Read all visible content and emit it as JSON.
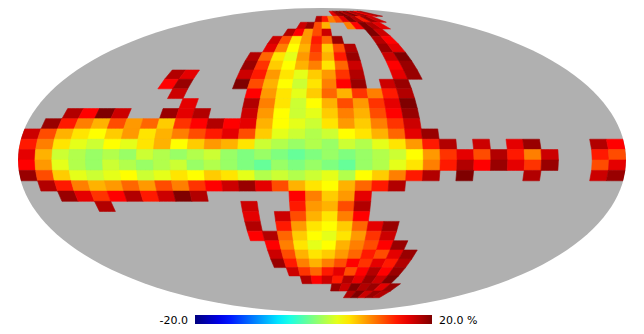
{
  "chart_data": {
    "type": "heatmap",
    "lon": [
      175,
      165,
      155,
      145,
      135,
      125,
      115,
      105,
      95,
      85,
      75,
      65,
      55,
      45,
      35,
      25,
      15,
      5,
      -5,
      -15,
      -25,
      -35,
      -45,
      -55,
      -65,
      -75,
      -85,
      -95,
      -105,
      -115,
      -125,
      -135,
      -145,
      -155,
      -165,
      -175
    ],
    "lat": [
      82.5,
      77.5,
      72.5,
      67.5,
      62.5,
      57.5,
      52.5,
      47.5,
      42.5,
      37.5,
      32.5,
      27.5,
      22.5,
      17.5,
      12.5,
      7.5,
      2.5,
      -2.5,
      -7.5,
      -12.5,
      -17.5,
      -22.5,
      -27.5,
      -32.5,
      -37.5,
      -42.5,
      -47.5,
      -52.5,
      -57.5,
      -62.5,
      -67.5,
      -72.5,
      -77.5,
      -82.5
    ],
    "values": [
      [
        null,
        null,
        null,
        null,
        null,
        null,
        null,
        null,
        null,
        null,
        null,
        null,
        null,
        null,
        null,
        null,
        null,
        null,
        null,
        null,
        16,
        19,
        20,
        18,
        20,
        17,
        19,
        15,
        18,
        null,
        null,
        null,
        null,
        null,
        null,
        null
      ],
      [
        null,
        null,
        null,
        null,
        null,
        null,
        null,
        null,
        null,
        null,
        null,
        null,
        null,
        null,
        null,
        null,
        null,
        18,
        14,
        10,
        12,
        16,
        20,
        18,
        14,
        19,
        17,
        null,
        null,
        null,
        null,
        null,
        null,
        null,
        null,
        null
      ],
      [
        null,
        null,
        null,
        null,
        null,
        null,
        null,
        null,
        null,
        null,
        null,
        null,
        null,
        null,
        null,
        17,
        19,
        12,
        8,
        null,
        null,
        10,
        15,
        20,
        18,
        16,
        null,
        null,
        null,
        null,
        null,
        null,
        null,
        null,
        null,
        null
      ],
      [
        null,
        null,
        null,
        null,
        null,
        null,
        null,
        null,
        null,
        null,
        null,
        null,
        null,
        null,
        18,
        15,
        9,
        12,
        17,
        null,
        null,
        null,
        null,
        20,
        17,
        null,
        null,
        null,
        null,
        null,
        null,
        null,
        null,
        null,
        null,
        null
      ],
      [
        null,
        null,
        null,
        null,
        null,
        null,
        null,
        null,
        null,
        null,
        null,
        null,
        null,
        17,
        12,
        6,
        9,
        14,
        11,
        19,
        null,
        null,
        null,
        18,
        15,
        null,
        null,
        null,
        null,
        null,
        null,
        null,
        null,
        null,
        null,
        null
      ],
      [
        null,
        null,
        null,
        null,
        null,
        null,
        null,
        null,
        null,
        null,
        null,
        null,
        null,
        16,
        10,
        5,
        8,
        13,
        7,
        12,
        18,
        null,
        null,
        19,
        16,
        null,
        null,
        null,
        null,
        null,
        null,
        null,
        null,
        null,
        null,
        null
      ],
      [
        null,
        null,
        null,
        null,
        null,
        null,
        null,
        null,
        null,
        null,
        null,
        null,
        18,
        11,
        6,
        4,
        9,
        12,
        8,
        14,
        19,
        null,
        null,
        17,
        20,
        null,
        null,
        null,
        null,
        null,
        null,
        null,
        null,
        null,
        null,
        null
      ],
      [
        null,
        null,
        null,
        null,
        null,
        null,
        null,
        null,
        null,
        null,
        null,
        null,
        19,
        13,
        7,
        5,
        8,
        10,
        6,
        11,
        17,
        null,
        null,
        15,
        19,
        null,
        null,
        null,
        null,
        null,
        null,
        null,
        null,
        null,
        null,
        null
      ],
      [
        null,
        null,
        null,
        null,
        null,
        null,
        null,
        18,
        16,
        null,
        null,
        null,
        17,
        14,
        9,
        6,
        4,
        7,
        9,
        13,
        18,
        null,
        null,
        16,
        19,
        null,
        null,
        null,
        null,
        null,
        null,
        null,
        null,
        null,
        null,
        null
      ],
      [
        null,
        null,
        null,
        null,
        null,
        null,
        null,
        15,
        19,
        null,
        null,
        null,
        20,
        12,
        8,
        5,
        3,
        6,
        10,
        15,
        19,
        null,
        17,
        19,
        null,
        null,
        null,
        null,
        null,
        null,
        null,
        null,
        null,
        null,
        null,
        null
      ],
      [
        null,
        null,
        null,
        null,
        null,
        null,
        null,
        null,
        17,
        null,
        null,
        null,
        null,
        15,
        9,
        6,
        4,
        7,
        11,
        8,
        13,
        10,
        14,
        18,
        null,
        null,
        null,
        null,
        null,
        null,
        null,
        null,
        null,
        null,
        null,
        null
      ],
      [
        null,
        null,
        null,
        null,
        null,
        null,
        null,
        null,
        null,
        16,
        null,
        null,
        null,
        18,
        10,
        6,
        3,
        5,
        8,
        12,
        9,
        13,
        16,
        20,
        null,
        null,
        null,
        null,
        null,
        null,
        null,
        null,
        null,
        null,
        null,
        null
      ],
      [
        null,
        null,
        18,
        15,
        20,
        17,
        null,
        null,
        19,
        16,
        18,
        null,
        null,
        17,
        9,
        5,
        3,
        4,
        7,
        10,
        8,
        12,
        15,
        19,
        null,
        null,
        null,
        null,
        null,
        null,
        null,
        null,
        null,
        null,
        null,
        null
      ],
      [
        null,
        19,
        14,
        10,
        8,
        12,
        9,
        11,
        7,
        13,
        15,
        18,
        15,
        16,
        8,
        5,
        4,
        3,
        6,
        9,
        7,
        10,
        13,
        17,
        null,
        null,
        null,
        null,
        null,
        null,
        null,
        null,
        null,
        null,
        null,
        null
      ],
      [
        17,
        12,
        8,
        6,
        5,
        7,
        9,
        6,
        8,
        10,
        12,
        14,
        16,
        12,
        7,
        4,
        3,
        2,
        3,
        5,
        6,
        8,
        11,
        16,
        19,
        null,
        null,
        null,
        null,
        null,
        null,
        null,
        null,
        null,
        null,
        null
      ],
      [
        14,
        10,
        6,
        4,
        3,
        5,
        4,
        6,
        8,
        5,
        7,
        9,
        8,
        6,
        3,
        2,
        1,
        2,
        1,
        3,
        2,
        4,
        6,
        9,
        14,
        18,
        null,
        17,
        null,
        16,
        19,
        null,
        null,
        null,
        18,
        15
      ],
      [
        16,
        8,
        3,
        2,
        1,
        2,
        1,
        3,
        2,
        1,
        2,
        3,
        1,
        0,
        1,
        0,
        -1,
        0,
        1,
        0,
        1,
        2,
        3,
        5,
        9,
        13,
        16,
        12,
        18,
        14,
        10,
        17,
        null,
        null,
        14,
        12
      ],
      [
        15,
        9,
        4,
        2,
        1,
        3,
        2,
        1,
        2,
        3,
        1,
        2,
        1,
        0,
        -1,
        1,
        0,
        1,
        0,
        -1,
        1,
        2,
        4,
        6,
        10,
        14,
        18,
        15,
        19,
        16,
        13,
        19,
        null,
        null,
        12,
        16
      ],
      [
        19,
        12,
        7,
        4,
        3,
        4,
        5,
        3,
        4,
        6,
        5,
        7,
        6,
        4,
        2,
        3,
        2,
        3,
        4,
        2,
        5,
        7,
        10,
        14,
        18,
        null,
        20,
        null,
        null,
        null,
        18,
        null,
        null,
        null,
        17,
        19
      ],
      [
        null,
        18,
        14,
        10,
        8,
        9,
        11,
        9,
        12,
        10,
        13,
        15,
        17,
        19,
        16,
        12,
        8,
        6,
        5,
        8,
        11,
        14,
        18,
        null,
        null,
        null,
        null,
        null,
        null,
        null,
        null,
        null,
        null,
        null,
        null,
        null
      ],
      [
        null,
        null,
        19,
        16,
        13,
        15,
        18,
        14,
        17,
        20,
        18,
        null,
        null,
        null,
        null,
        null,
        15,
        10,
        7,
        9,
        16,
        null,
        null,
        null,
        null,
        null,
        null,
        null,
        null,
        null,
        null,
        null,
        null,
        null,
        null,
        null
      ],
      [
        null,
        null,
        null,
        null,
        18,
        null,
        null,
        null,
        null,
        null,
        null,
        null,
        null,
        17,
        null,
        null,
        14,
        9,
        8,
        12,
        18,
        null,
        null,
        null,
        null,
        null,
        null,
        null,
        null,
        null,
        null,
        null,
        null,
        null,
        null,
        null
      ],
      [
        null,
        null,
        null,
        null,
        null,
        null,
        null,
        null,
        null,
        null,
        null,
        null,
        null,
        16,
        null,
        17,
        12,
        8,
        6,
        10,
        15,
        null,
        null,
        null,
        null,
        null,
        null,
        null,
        null,
        null,
        null,
        null,
        null,
        null,
        null,
        null
      ],
      [
        null,
        null,
        null,
        null,
        null,
        null,
        null,
        null,
        null,
        null,
        null,
        null,
        null,
        18,
        null,
        14,
        9,
        6,
        5,
        7,
        11,
        16,
        19,
        null,
        null,
        null,
        null,
        null,
        null,
        null,
        null,
        null,
        null,
        null,
        null,
        null
      ],
      [
        null,
        null,
        null,
        null,
        null,
        null,
        null,
        null,
        null,
        null,
        null,
        null,
        null,
        15,
        18,
        11,
        7,
        5,
        4,
        6,
        9,
        13,
        17,
        null,
        null,
        null,
        null,
        null,
        null,
        null,
        null,
        null,
        null,
        null,
        null,
        null
      ],
      [
        null,
        null,
        null,
        null,
        null,
        null,
        null,
        null,
        null,
        null,
        null,
        null,
        null,
        null,
        15,
        10,
        6,
        4,
        5,
        8,
        10,
        12,
        15,
        19,
        null,
        null,
        null,
        null,
        null,
        null,
        null,
        null,
        null,
        null,
        null,
        null
      ],
      [
        null,
        null,
        null,
        null,
        null,
        null,
        null,
        null,
        null,
        null,
        null,
        null,
        null,
        null,
        17,
        12,
        8,
        6,
        7,
        9,
        11,
        14,
        12,
        16,
        19,
        null,
        null,
        null,
        null,
        null,
        null,
        null,
        null,
        null,
        null,
        null
      ],
      [
        null,
        null,
        null,
        null,
        null,
        null,
        null,
        null,
        null,
        null,
        null,
        null,
        null,
        null,
        19,
        14,
        10,
        8,
        10,
        12,
        15,
        13,
        16,
        14,
        18,
        null,
        null,
        null,
        null,
        null,
        null,
        null,
        null,
        null,
        null,
        null
      ],
      [
        null,
        null,
        null,
        null,
        null,
        null,
        null,
        null,
        null,
        null,
        null,
        null,
        null,
        null,
        null,
        17,
        13,
        11,
        14,
        16,
        12,
        15,
        18,
        15,
        19,
        null,
        null,
        null,
        null,
        null,
        null,
        null,
        null,
        null,
        null,
        null
      ],
      [
        null,
        null,
        null,
        null,
        null,
        null,
        null,
        null,
        null,
        null,
        null,
        null,
        null,
        null,
        null,
        null,
        18,
        15,
        17,
        14,
        18,
        16,
        19,
        17,
        20,
        null,
        null,
        null,
        null,
        null,
        null,
        null,
        null,
        null,
        null,
        null
      ],
      [
        null,
        null,
        null,
        null,
        null,
        null,
        null,
        null,
        null,
        null,
        null,
        null,
        null,
        null,
        null,
        null,
        null,
        null,
        null,
        19,
        17,
        20,
        18,
        19,
        16,
        19,
        null,
        null,
        null,
        null,
        null,
        null,
        null,
        null,
        null,
        null
      ],
      [
        null,
        null,
        null,
        null,
        null,
        null,
        null,
        null,
        null,
        null,
        null,
        null,
        null,
        null,
        null,
        null,
        null,
        null,
        null,
        null,
        null,
        18,
        20,
        17,
        19,
        18,
        null,
        null,
        null,
        null,
        null,
        null,
        null,
        null,
        null,
        null
      ],
      [
        null,
        null,
        null,
        null,
        null,
        null,
        null,
        null,
        null,
        null,
        null,
        null,
        null,
        null,
        null,
        null,
        null,
        null,
        null,
        null,
        null,
        null,
        null,
        null,
        null,
        null,
        null,
        null,
        null,
        null,
        null,
        null,
        null,
        null,
        null,
        null
      ],
      [
        null,
        null,
        null,
        null,
        null,
        null,
        null,
        null,
        null,
        null,
        null,
        null,
        null,
        null,
        null,
        null,
        null,
        null,
        null,
        null,
        null,
        null,
        null,
        null,
        null,
        null,
        null,
        null,
        null,
        null,
        null,
        null,
        null,
        null,
        null,
        null
      ]
    ],
    "color_range": [
      -20,
      20
    ],
    "color_ticks": [
      {
        "value": -20,
        "label": "-20.0"
      },
      {
        "value": 20,
        "label": "20.0 %"
      }
    ]
  }
}
